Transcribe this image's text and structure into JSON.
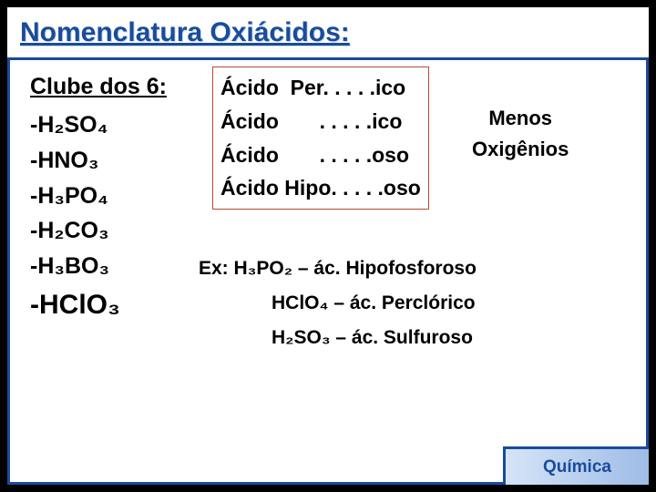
{
  "title": "Nomenclatura Oxiácidos:",
  "footer": "Química",
  "club": {
    "heading": "Clube dos 6:",
    "acids": [
      "-H₂SO₄",
      "-HNO₃",
      "-H₃PO₄",
      "-H₂CO₃",
      "-H₃BO₃",
      "-HClO₃"
    ]
  },
  "rules": {
    "r1": "Ácido  Per. . . . .ico",
    "r2": "Ácido       . . . . .ico",
    "r3": "Ácido       . . . . .oso",
    "r4": "Ácido Hipo. . . . .oso",
    "box_border_color": "#b94a2c"
  },
  "sidelabel": {
    "l1": "Menos",
    "l2": "Oxigênios"
  },
  "examples": {
    "intro": "Ex: H₃PO₂ – ác. Hipofosforoso",
    "e2": "HClO₄ – ác. Perclórico",
    "e3": "H₂SO₃ – ác. Sulfuroso"
  },
  "colors": {
    "frame": "#1a4b9c",
    "title_text": "#1a4b9c",
    "title_shadow": "#c7dbf3",
    "background": "#ffffff",
    "outer": "#000000",
    "corner_grad_from": "#d6e4f7",
    "corner_grad_to": "#9ebce6"
  }
}
